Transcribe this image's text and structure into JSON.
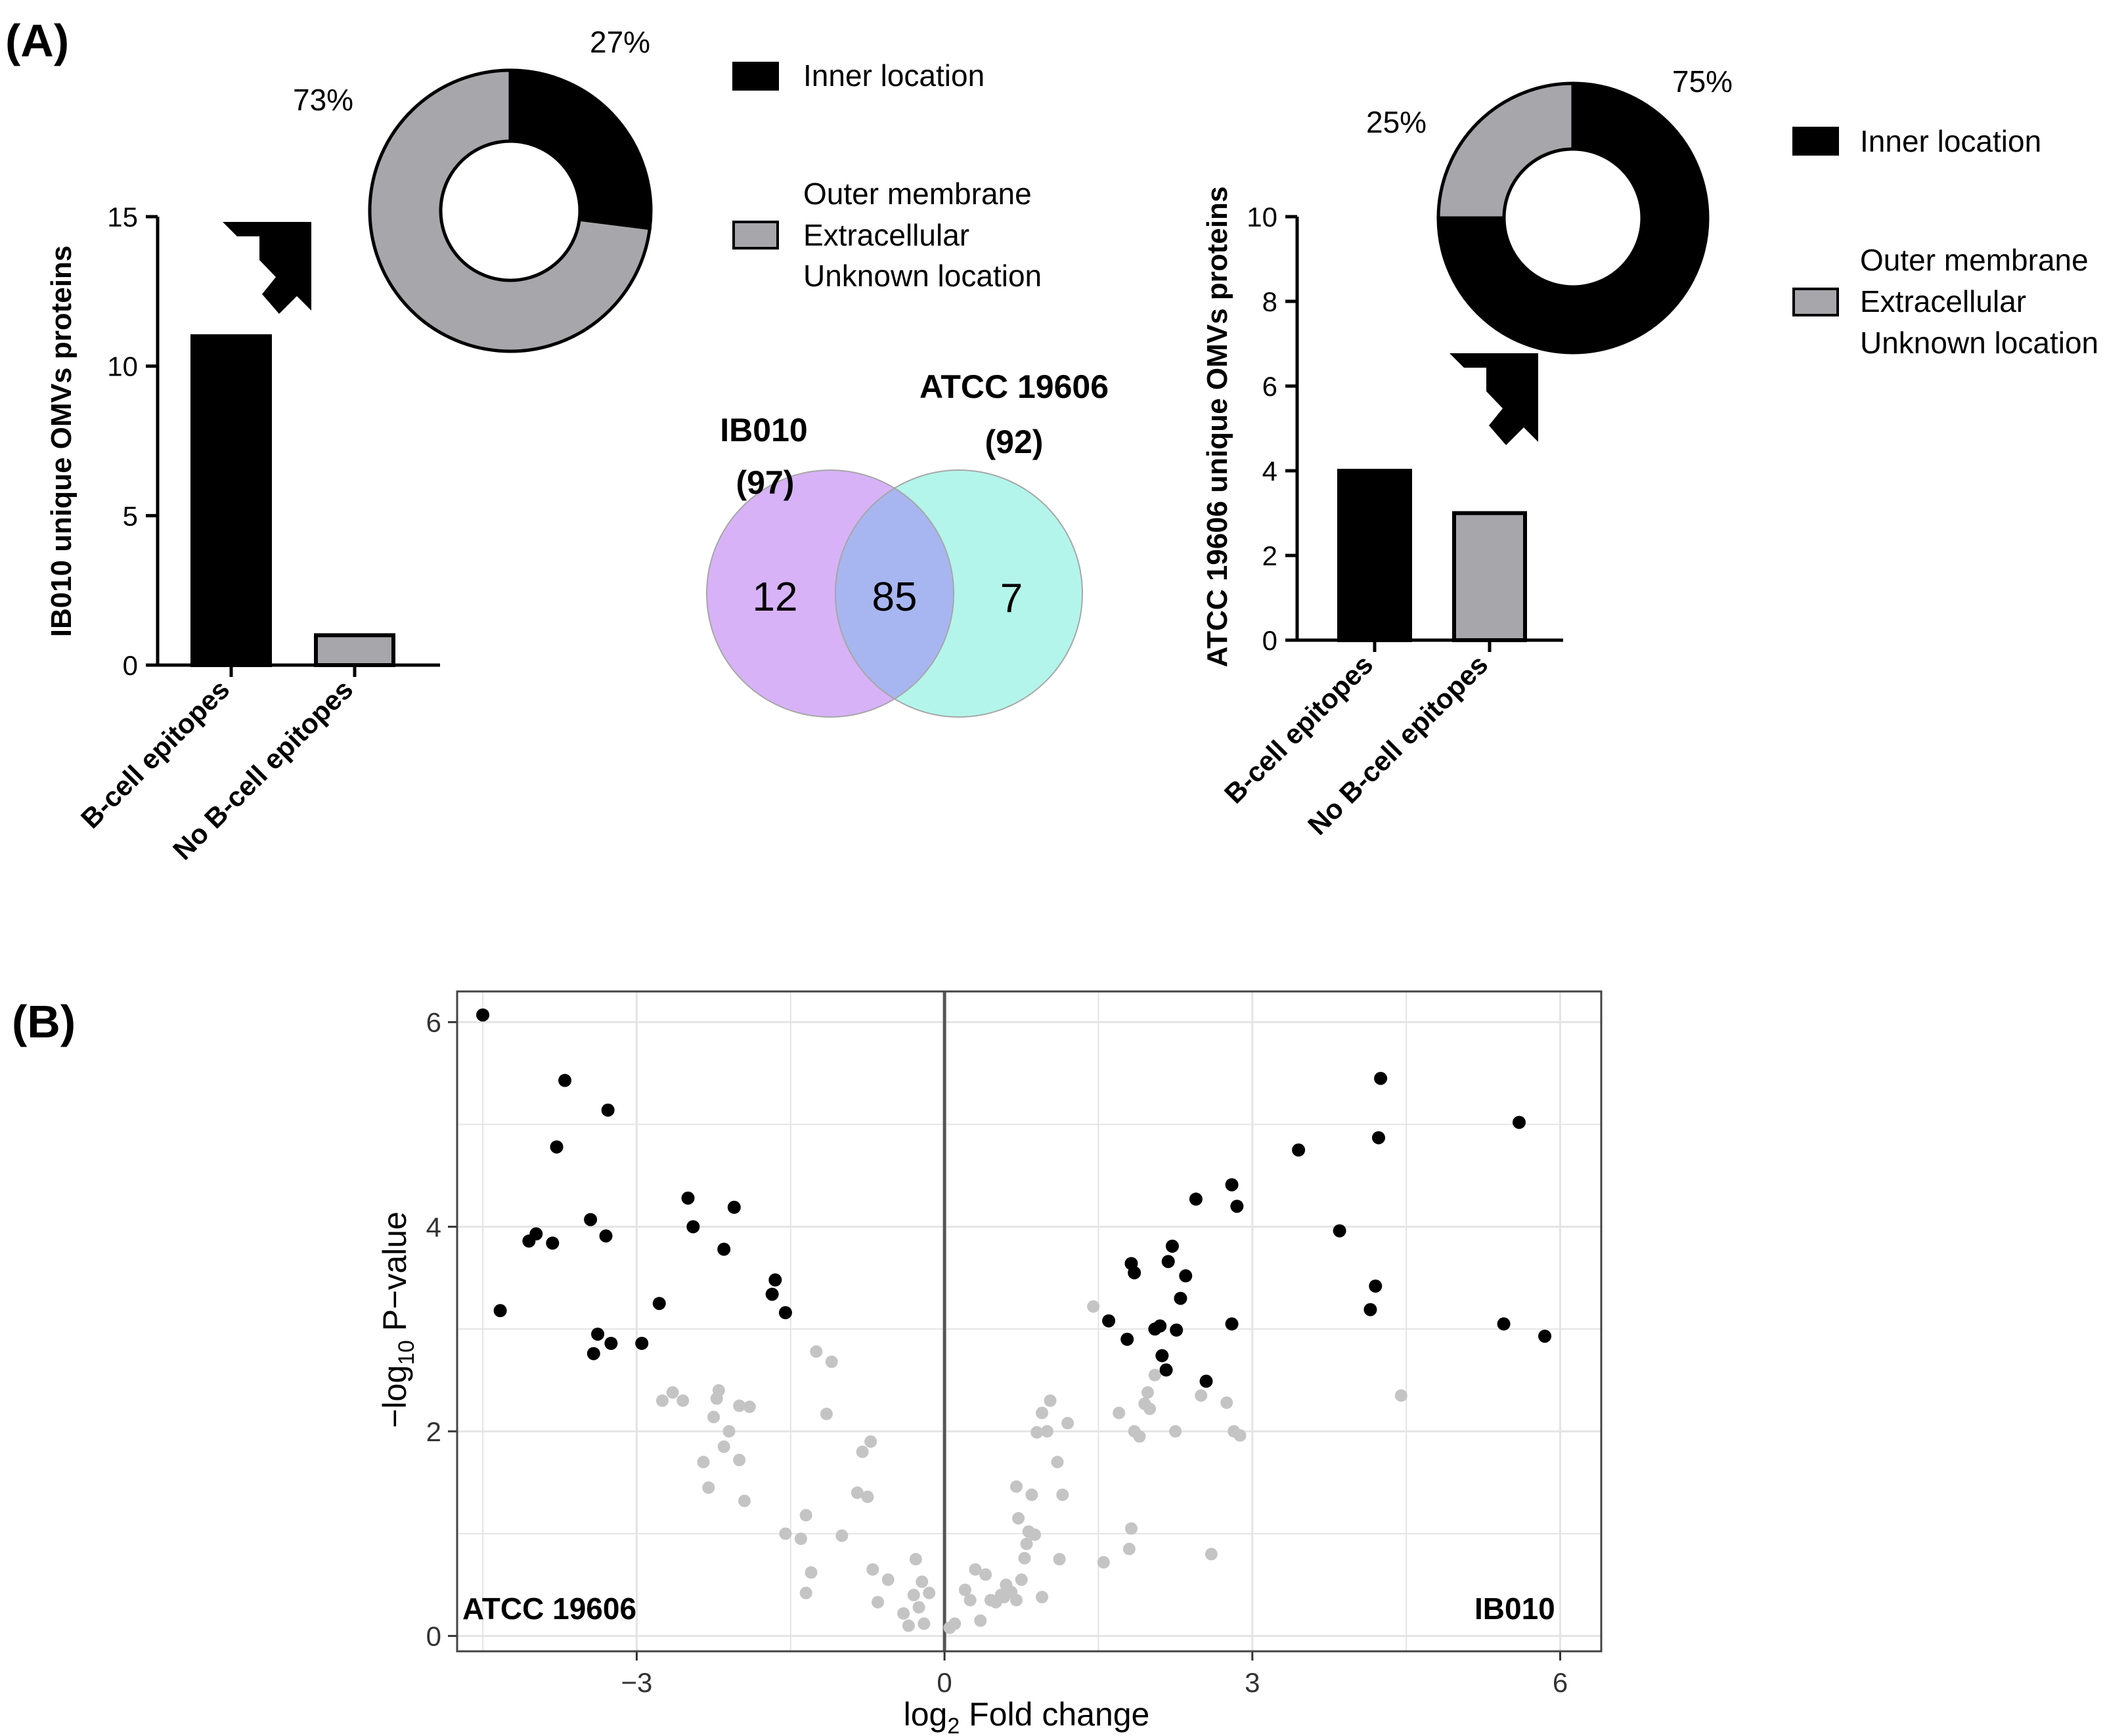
{
  "colors": {
    "inner": "#000000",
    "outer": "#a6a6ab",
    "venn_ib010": "#d7b2f7",
    "venn_atcc": "#b3f5ea",
    "venn_overlap": "#a7b6f0",
    "volcano_sig": "#000000",
    "volcano_ns": "#c4c4c4",
    "grid": "#e4e4e4"
  },
  "panels": {
    "a_label": "(A)",
    "b_label": "(B)"
  },
  "chart_data": [
    {
      "type": "bar",
      "title": "",
      "ylabel": "IB010 unique OMVs proteins",
      "categories": [
        "B-cell epitopes",
        "No B-cell epitopes"
      ],
      "values": [
        11,
        1
      ],
      "colors": [
        "inner",
        "outer"
      ],
      "ylim": [
        0,
        15
      ],
      "yticks": [
        "0",
        "5",
        "10",
        "15"
      ]
    },
    {
      "type": "pie",
      "donut": true,
      "slices": [
        {
          "label": "Inner location",
          "value": 27,
          "display": "27%"
        },
        {
          "label": "Outer membrane\nExtracellular\nUnknown location",
          "value": 73,
          "display": "73%"
        }
      ],
      "legend": [
        "Inner location",
        "Outer membrane",
        "Extracellular",
        "Unknown location"
      ]
    },
    {
      "type": "venn",
      "sets": [
        {
          "name": "IB010",
          "total": "(97)",
          "only": "12"
        },
        {
          "name": "ATCC 19606",
          "total": "(92)",
          "only": "7"
        }
      ],
      "overlap": "85"
    },
    {
      "type": "bar",
      "title": "",
      "ylabel": "ATCC 19606 unique OMVs proteins",
      "categories": [
        "B-cell epitopes",
        "No B-cell epitopes"
      ],
      "values": [
        4,
        3
      ],
      "colors": [
        "inner",
        "outer"
      ],
      "ylim": [
        0,
        10
      ],
      "yticks": [
        "0",
        "2",
        "4",
        "6",
        "8",
        "10"
      ]
    },
    {
      "type": "pie",
      "donut": true,
      "slices": [
        {
          "label": "Inner location",
          "value": 75,
          "display": "75%"
        },
        {
          "label": "Outer membrane\nExtracellular\nUnknown location",
          "value": 25,
          "display": "25%"
        }
      ],
      "legend": [
        "Inner location",
        "Outer membrane",
        "Extracellular",
        "Unknown location"
      ]
    },
    {
      "type": "scatter",
      "title": "",
      "xlabel": "log2 Fold change",
      "ylabel": "−log10 P−value",
      "xlim": [
        -4.75,
        6.4
      ],
      "ylim": [
        -0.15,
        6.3
      ],
      "xticks": [
        -3,
        0,
        3,
        6
      ],
      "xtick_labels": [
        "−3",
        "0",
        "3",
        "6"
      ],
      "yticks": [
        0,
        2,
        4,
        6
      ],
      "grid": true,
      "corner_labels": {
        "left": "ATCC 19606",
        "right": "IB010"
      },
      "series": [
        {
          "role": "significant",
          "points": [
            [
              -4.5,
              6.07
            ],
            [
              -4.33,
              3.18
            ],
            [
              -3.7,
              5.43
            ],
            [
              -3.78,
              4.78
            ],
            [
              -4.05,
              3.86
            ],
            [
              -3.98,
              3.93
            ],
            [
              -3.82,
              3.84
            ],
            [
              -3.28,
              5.14
            ],
            [
              -3.45,
              4.07
            ],
            [
              -3.3,
              3.91
            ],
            [
              -3.42,
              2.76
            ],
            [
              -3.38,
              2.95
            ],
            [
              -3.25,
              2.86
            ],
            [
              -2.95,
              2.86
            ],
            [
              -2.78,
              3.25
            ],
            [
              -2.5,
              4.28
            ],
            [
              -2.45,
              4.0
            ],
            [
              -2.05,
              4.19
            ],
            [
              -2.15,
              3.78
            ],
            [
              -1.65,
              3.48
            ],
            [
              -1.68,
              3.34
            ],
            [
              -1.55,
              3.16
            ],
            [
              1.6,
              3.08
            ],
            [
              1.78,
              2.9
            ],
            [
              1.82,
              3.64
            ],
            [
              1.85,
              3.55
            ],
            [
              2.05,
              3.0
            ],
            [
              2.1,
              3.03
            ],
            [
              2.12,
              2.74
            ],
            [
              2.16,
              2.6
            ],
            [
              2.18,
              3.66
            ],
            [
              2.22,
              3.81
            ],
            [
              2.26,
              2.99
            ],
            [
              2.3,
              3.3
            ],
            [
              2.35,
              3.52
            ],
            [
              2.45,
              4.27
            ],
            [
              2.55,
              2.49
            ],
            [
              2.8,
              4.41
            ],
            [
              2.85,
              4.2
            ],
            [
              2.8,
              3.05
            ],
            [
              3.45,
              4.75
            ],
            [
              3.85,
              3.96
            ],
            [
              4.15,
              3.19
            ],
            [
              4.2,
              3.42
            ],
            [
              4.23,
              4.87
            ],
            [
              4.25,
              5.45
            ],
            [
              5.45,
              3.05
            ],
            [
              5.6,
              5.02
            ],
            [
              5.85,
              2.93
            ]
          ]
        },
        {
          "role": "not significant",
          "points": [
            [
              -2.75,
              2.3
            ],
            [
              -2.65,
              2.38
            ],
            [
              -2.55,
              2.3
            ],
            [
              -2.35,
              1.7
            ],
            [
              -2.3,
              1.45
            ],
            [
              -2.2,
              2.4
            ],
            [
              -2.22,
              2.32
            ],
            [
              -2.25,
              2.14
            ],
            [
              -2.1,
              2.0
            ],
            [
              -2.15,
              1.85
            ],
            [
              -2.0,
              1.72
            ],
            [
              -2.0,
              2.25
            ],
            [
              -1.9,
              2.24
            ],
            [
              -1.95,
              1.32
            ],
            [
              -1.55,
              1.0
            ],
            [
              -1.4,
              0.95
            ],
            [
              -1.35,
              1.18
            ],
            [
              -1.3,
              0.62
            ],
            [
              -1.35,
              0.42
            ],
            [
              -1.25,
              2.78
            ],
            [
              -1.1,
              2.68
            ],
            [
              -1.15,
              2.17
            ],
            [
              -1.0,
              0.98
            ],
            [
              -0.85,
              1.4
            ],
            [
              -0.8,
              1.8
            ],
            [
              -0.72,
              1.9
            ],
            [
              -0.75,
              1.36
            ],
            [
              -0.7,
              0.65
            ],
            [
              -0.65,
              0.33
            ],
            [
              -0.55,
              0.55
            ],
            [
              -0.4,
              0.22
            ],
            [
              -0.35,
              0.1
            ],
            [
              -0.3,
              0.4
            ],
            [
              -0.28,
              0.75
            ],
            [
              -0.25,
              0.28
            ],
            [
              -0.22,
              0.53
            ],
            [
              -0.15,
              0.42
            ],
            [
              -0.2,
              0.12
            ],
            [
              0.05,
              0.08
            ],
            [
              0.1,
              0.12
            ],
            [
              0.2,
              0.45
            ],
            [
              0.25,
              0.35
            ],
            [
              0.3,
              0.65
            ],
            [
              0.35,
              0.15
            ],
            [
              0.4,
              0.6
            ],
            [
              0.45,
              0.35
            ],
            [
              0.5,
              0.33
            ],
            [
              0.55,
              0.4
            ],
            [
              0.58,
              0.38
            ],
            [
              0.6,
              0.5
            ],
            [
              0.65,
              0.43
            ],
            [
              0.7,
              0.35
            ],
            [
              0.75,
              0.55
            ],
            [
              0.8,
              0.9
            ],
            [
              0.72,
              1.15
            ],
            [
              0.7,
              1.46
            ],
            [
              0.78,
              0.76
            ],
            [
              0.85,
              1.38
            ],
            [
              0.82,
              1.02
            ],
            [
              0.88,
              0.99
            ],
            [
              0.9,
              1.99
            ],
            [
              0.95,
              2.18
            ],
            [
              1.0,
              2.0
            ],
            [
              1.03,
              2.3
            ],
            [
              0.95,
              0.38
            ],
            [
              1.1,
              1.7
            ],
            [
              1.15,
              1.38
            ],
            [
              1.12,
              0.75
            ],
            [
              1.2,
              2.08
            ],
            [
              1.45,
              3.22
            ],
            [
              1.55,
              0.72
            ],
            [
              1.7,
              2.18
            ],
            [
              1.8,
              0.85
            ],
            [
              1.82,
              1.05
            ],
            [
              1.85,
              2.0
            ],
            [
              1.9,
              1.95
            ],
            [
              1.95,
              2.27
            ],
            [
              1.98,
              2.38
            ],
            [
              2.0,
              2.22
            ],
            [
              2.05,
              2.55
            ],
            [
              2.25,
              2.0
            ],
            [
              2.5,
              2.35
            ],
            [
              2.6,
              0.8
            ],
            [
              2.75,
              2.28
            ],
            [
              2.82,
              2.0
            ],
            [
              2.88,
              1.96
            ],
            [
              4.45,
              2.35
            ]
          ]
        }
      ]
    }
  ]
}
